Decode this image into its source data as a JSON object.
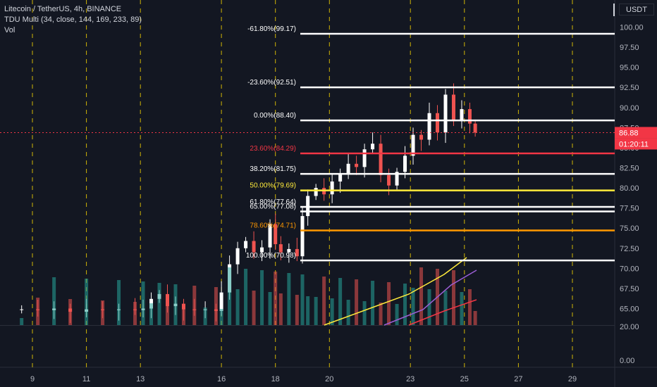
{
  "legend": {
    "symbol": "Litecoin / TetherUS, 4h, BINANCE",
    "indicator": "TDU Multi (34, close, 144, 169, 233, 89)",
    "volume": "Vol"
  },
  "currency_button": "USDT",
  "colors": {
    "background": "#131722",
    "up": "#ffffff",
    "down": "#ef5350",
    "vol_up": "#26a69a",
    "vol_down": "#ef5350",
    "grid": "#f0d000",
    "fib_white": "#ffffff",
    "fib_red": "#f23645",
    "fib_yellow": "#ffeb3b",
    "fib_orange": "#ff9800",
    "ema_yellow": "#ffeb3b",
    "ema_purple": "#9c5fd6",
    "ema_red": "#f23645",
    "price_badge": "#f23645"
  },
  "chart_data": {
    "type": "candlestick",
    "title": "Litecoin / TetherUS, 4h, BINANCE",
    "x_ticks": [
      "9",
      "11",
      "13",
      "16",
      "18",
      "20",
      "23",
      "25",
      "27",
      "29"
    ],
    "x_range": [
      8,
      30.5
    ],
    "y_ticks": [
      "100.00",
      "97.50",
      "95.00",
      "92.50",
      "90.00",
      "87.50",
      "85.00",
      "82.50",
      "80.00",
      "77.50",
      "75.00",
      "72.50",
      "70.00",
      "67.50",
      "65.00"
    ],
    "y_range": [
      64.1,
      101.6
    ],
    "volume_axis_ticks": [
      "20.00",
      "0.00"
    ],
    "current_price": "86.88",
    "countdown": "01:20:11",
    "fib_levels": [
      {
        "label": "-61.80%(99.17)",
        "value": 99.17,
        "color": "#ffffff"
      },
      {
        "label": "-23.60%(92.51)",
        "value": 92.51,
        "color": "#ffffff"
      },
      {
        "label": "0.00%(88.40)",
        "value": 88.4,
        "color": "#ffffff"
      },
      {
        "label": "23.60%(84.29)",
        "value": 84.29,
        "color": "#f23645"
      },
      {
        "label": "38.20%(81.75)",
        "value": 81.75,
        "color": "#ffffff"
      },
      {
        "label": "50.00%(79.69)",
        "value": 79.69,
        "color": "#ffeb3b"
      },
      {
        "label": "61.80%(77.64)",
        "value": 77.64,
        "color": "#ffffff"
      },
      {
        "label": "65.00%(77.08)",
        "value": 77.08,
        "color": "#ffffff"
      },
      {
        "label": "78.60%(74.71)",
        "value": 74.71,
        "color": "#ff9800"
      },
      {
        "label": "100.00%(70.98)",
        "value": 70.98,
        "color": "#ffffff"
      }
    ]
  }
}
